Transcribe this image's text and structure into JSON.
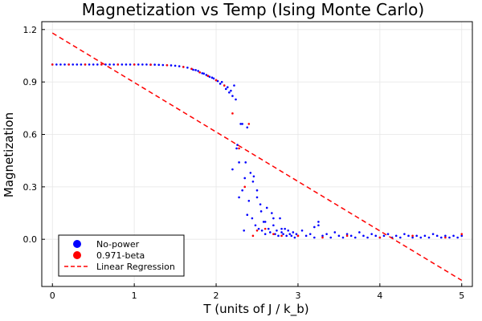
{
  "chart_data": {
    "type": "scatter",
    "title": "Magnetization vs Temp (Ising Monte Carlo)",
    "xlabel": "T (units of J / k_b)",
    "ylabel": "Magnetization",
    "xlim": [
      -0.13,
      5.13
    ],
    "ylim": [
      -0.27,
      1.245
    ],
    "xticks": [
      0,
      1,
      2,
      3,
      4,
      5
    ],
    "yticks": [
      0.0,
      0.3,
      0.6,
      0.9,
      1.2
    ],
    "xtick_labels": [
      "0",
      "1",
      "2",
      "3",
      "4",
      "5"
    ],
    "ytick_labels": [
      "0.0",
      "0.3",
      "0.6",
      "0.9",
      "1.2"
    ],
    "grid": true,
    "legend_position": "bottom-left",
    "series": [
      {
        "name": "No-power",
        "color": "#0000ff",
        "style": "markers",
        "x": [
          0.0,
          0.05,
          0.1,
          0.15,
          0.2,
          0.25,
          0.3,
          0.35,
          0.4,
          0.45,
          0.5,
          0.55,
          0.6,
          0.65,
          0.7,
          0.75,
          0.8,
          0.85,
          0.9,
          0.95,
          1.0,
          1.05,
          1.1,
          1.15,
          1.2,
          1.25,
          1.3,
          1.35,
          1.4,
          1.45,
          1.5,
          1.55,
          1.6,
          1.65,
          1.7,
          1.72,
          1.75,
          1.78,
          1.8,
          1.83,
          1.85,
          1.88,
          1.9,
          1.92,
          1.95,
          1.97,
          2.0,
          2.02,
          2.05,
          2.07,
          2.1,
          2.12,
          2.14,
          2.16,
          2.18,
          2.2,
          2.22,
          2.24,
          2.26,
          2.28,
          2.3,
          2.32,
          2.34,
          2.36,
          2.38,
          2.4,
          2.42,
          2.44,
          2.46,
          2.48,
          2.5,
          2.52,
          2.54,
          2.56,
          2.58,
          2.6,
          2.62,
          2.64,
          2.66,
          2.68,
          2.7,
          2.72,
          2.74,
          2.76,
          2.78,
          2.8,
          2.82,
          2.84,
          2.86,
          2.88,
          2.9,
          2.92,
          2.94,
          2.96,
          2.98,
          3.0,
          3.05,
          3.1,
          3.15,
          3.2,
          3.25,
          3.3,
          3.35,
          3.4,
          3.45,
          3.5,
          3.55,
          3.6,
          3.65,
          3.7,
          3.75,
          3.8,
          3.85,
          3.9,
          3.95,
          4.0,
          4.05,
          4.1,
          4.15,
          4.2,
          4.25,
          4.3,
          4.35,
          4.4,
          4.45,
          4.5,
          4.55,
          4.6,
          4.65,
          4.7,
          4.75,
          4.8,
          4.85,
          4.9,
          4.95,
          5.0,
          2.2,
          2.25,
          2.28,
          2.32,
          2.35,
          2.38,
          2.45,
          2.5,
          2.55,
          2.6,
          2.7,
          2.8,
          3.2,
          3.25
        ],
        "y": [
          1.0,
          1.0,
          1.0,
          1.0,
          1.0,
          1.0,
          1.0,
          1.0,
          1.0,
          1.0,
          1.0,
          1.0,
          1.0,
          1.0,
          1.0,
          1.0,
          1.0,
          1.0,
          1.0,
          1.0,
          1.0,
          1.0,
          1.0,
          1.0,
          0.999,
          0.999,
          0.998,
          0.997,
          0.996,
          0.995,
          0.993,
          0.99,
          0.986,
          0.982,
          0.975,
          0.97,
          0.968,
          0.963,
          0.955,
          0.95,
          0.948,
          0.94,
          0.935,
          0.93,
          0.925,
          0.92,
          0.91,
          0.905,
          0.89,
          0.9,
          0.88,
          0.86,
          0.87,
          0.84,
          0.85,
          0.82,
          0.88,
          0.8,
          0.54,
          0.44,
          0.66,
          0.28,
          0.05,
          0.44,
          0.64,
          0.22,
          0.38,
          0.12,
          0.36,
          0.08,
          0.28,
          0.06,
          0.2,
          0.05,
          0.1,
          0.03,
          0.18,
          0.06,
          0.04,
          0.15,
          0.08,
          0.03,
          0.05,
          0.02,
          0.12,
          0.04,
          0.03,
          0.06,
          0.02,
          0.05,
          0.03,
          0.02,
          0.04,
          0.01,
          0.03,
          0.02,
          0.05,
          0.02,
          0.03,
          0.01,
          0.08,
          0.02,
          0.03,
          0.01,
          0.04,
          0.02,
          0.01,
          0.03,
          0.02,
          0.01,
          0.04,
          0.02,
          0.01,
          0.03,
          0.02,
          0.01,
          0.02,
          0.03,
          0.01,
          0.02,
          0.01,
          0.03,
          0.02,
          0.01,
          0.02,
          0.01,
          0.02,
          0.01,
          0.03,
          0.02,
          0.01,
          0.02,
          0.01,
          0.02,
          0.01,
          0.02,
          0.4,
          0.52,
          0.24,
          0.66,
          0.35,
          0.14,
          0.33,
          0.24,
          0.16,
          0.1,
          0.12,
          0.06,
          0.07,
          0.1
        ]
      },
      {
        "name": "0.971-beta",
        "color": "#ff0000",
        "style": "markers",
        "x": [
          0.0,
          0.2,
          0.4,
          0.6,
          0.8,
          1.0,
          1.2,
          1.4,
          1.6,
          1.7,
          1.8,
          1.9,
          2.0,
          2.1,
          2.2,
          2.28,
          2.35,
          2.4,
          2.45,
          2.5,
          2.6,
          2.7,
          2.8,
          3.0,
          3.3,
          3.6,
          4.0,
          4.4,
          4.8,
          5.0
        ],
        "y": [
          1.0,
          1.0,
          1.0,
          1.0,
          1.0,
          1.0,
          0.999,
          0.996,
          0.986,
          0.975,
          0.955,
          0.935,
          0.91,
          0.88,
          0.72,
          0.52,
          0.3,
          0.66,
          0.02,
          0.05,
          0.06,
          0.03,
          0.02,
          0.02,
          0.01,
          0.02,
          0.01,
          0.02,
          0.01,
          0.03
        ]
      },
      {
        "name": "Linear Regression",
        "color": "#ff0000",
        "style": "dashed-line",
        "x": [
          0.0,
          5.0
        ],
        "y": [
          1.18,
          -0.235
        ]
      }
    ]
  }
}
